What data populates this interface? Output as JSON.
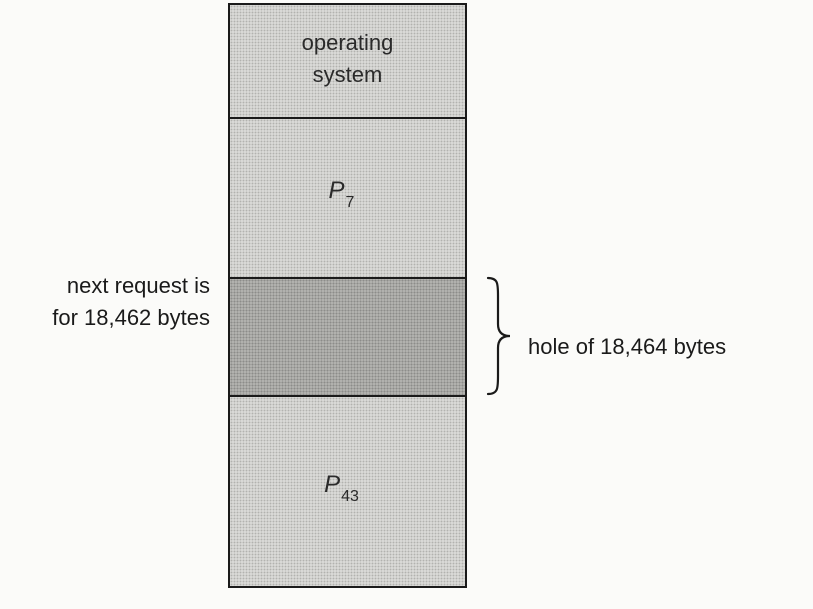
{
  "memory": {
    "os_label_line1": "operating",
    "os_label_line2": "system",
    "p7_label": "P",
    "p7_sub": "7",
    "p43_label": "P",
    "p43_sub": "43"
  },
  "annotations": {
    "request_line1": "next request is",
    "request_line2": "for 18,462 bytes",
    "hole_label": "hole of 18,464 bytes"
  },
  "colors": {
    "block_fill": "#d4d4d1",
    "hole_fill": "#a7a7a4",
    "outline": "#1a1a1a"
  }
}
